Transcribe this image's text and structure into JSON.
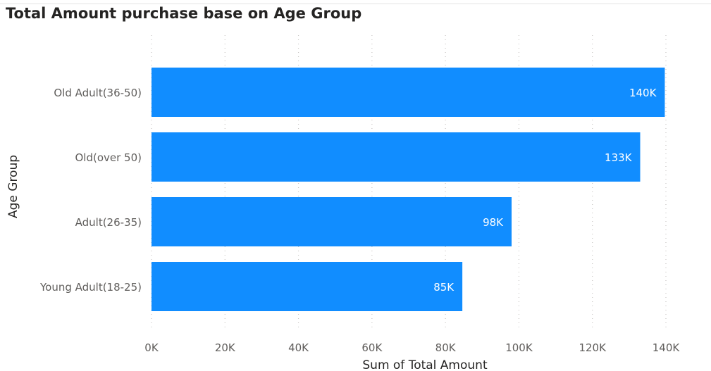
{
  "chart_data": {
    "type": "bar",
    "orientation": "horizontal",
    "title": "Total Amount purchase base on Age Group",
    "xlabel": "Sum of Total Amount",
    "ylabel": "Age Group",
    "categories": [
      "Old Adult(36-50)",
      "Old(over 50)",
      "Adult(26-35)",
      "Young Adult(18-25)"
    ],
    "values": [
      139700,
      133000,
      98000,
      84600
    ],
    "data_labels": [
      "140K",
      "133K",
      "98K",
      "85K"
    ],
    "xlim": [
      0,
      140000
    ],
    "x_ticks": [
      0,
      20000,
      40000,
      60000,
      80000,
      100000,
      120000,
      140000
    ],
    "x_tick_labels": [
      "0K",
      "20K",
      "40K",
      "60K",
      "80K",
      "100K",
      "120K",
      "140K"
    ],
    "grid": "vertical-dotted",
    "bar_color": "#118DFF",
    "legend": "none"
  }
}
